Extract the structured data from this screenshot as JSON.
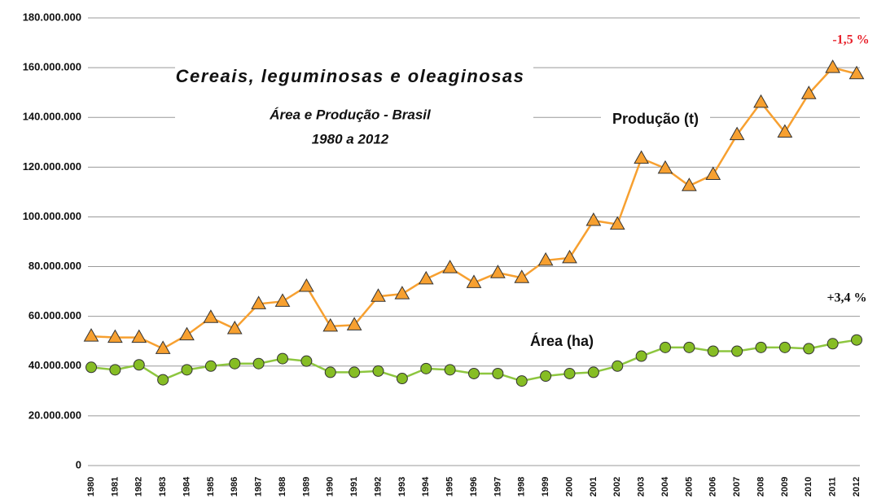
{
  "chart_data": {
    "type": "line",
    "title": "Cereais, leguminosas e oleaginosas",
    "subtitle": [
      "Área e Produção - Brasil",
      "1980 a 2012"
    ],
    "categories": [
      "1980",
      "1981",
      "1982",
      "1983",
      "1984",
      "1985",
      "1986",
      "1987",
      "1988",
      "1989",
      "1990",
      "1991",
      "1992",
      "1993",
      "1994",
      "1995",
      "1996",
      "1997",
      "1998",
      "1999",
      "2000",
      "2001",
      "2002",
      "2003",
      "2004",
      "2005",
      "2006",
      "2007",
      "2008",
      "2009",
      "2010",
      "2011",
      "2012"
    ],
    "series": [
      {
        "name": "Produção (t)",
        "color": "#f7a030",
        "marker": "triangle",
        "values": [
          52000000,
          51500000,
          51500000,
          47000000,
          52500000,
          59500000,
          55000000,
          65000000,
          66000000,
          72000000,
          56000000,
          56500000,
          68000000,
          69000000,
          75000000,
          79500000,
          73500000,
          77500000,
          75500000,
          82500000,
          83500000,
          98500000,
          97000000,
          123500000,
          119500000,
          112500000,
          117000000,
          133000000,
          146000000,
          134000000,
          149500000,
          160000000,
          157500000
        ]
      },
      {
        "name": "Área (ha)",
        "color": "#8dc63f",
        "marker": "circle",
        "values": [
          39500000,
          38500000,
          40500000,
          34500000,
          38500000,
          40000000,
          41000000,
          41000000,
          43000000,
          42000000,
          37500000,
          37500000,
          38000000,
          35000000,
          39000000,
          38500000,
          37000000,
          37000000,
          34000000,
          36000000,
          37000000,
          37500000,
          40000000,
          44000000,
          47500000,
          47500000,
          46000000,
          46000000,
          47500000,
          47500000,
          47000000,
          49000000,
          50500000
        ]
      }
    ],
    "annotations": [
      {
        "text": "-1,5 %",
        "color": "#e8202a"
      },
      {
        "text": "+3,4 %",
        "color": "#111111"
      }
    ],
    "ylim": [
      0,
      180000000
    ],
    "yticks": [
      0,
      {
        "value": 20000000,
        "label": "20.000.000"
      },
      {
        "value": 40000000,
        "label": "40.000.000"
      },
      {
        "value": 60000000,
        "label": "60.000.000"
      },
      {
        "value": 80000000,
        "label": "80.000.000"
      },
      {
        "value": 100000000,
        "label": "100.000.000"
      },
      {
        "value": 120000000,
        "label": "120.000.000"
      },
      {
        "value": 140000000,
        "label": "140.000.000"
      },
      {
        "value": 160000000,
        "label": "160.000.000"
      },
      {
        "value": 180000000,
        "label": "180.000.000"
      }
    ],
    "grid": true
  }
}
